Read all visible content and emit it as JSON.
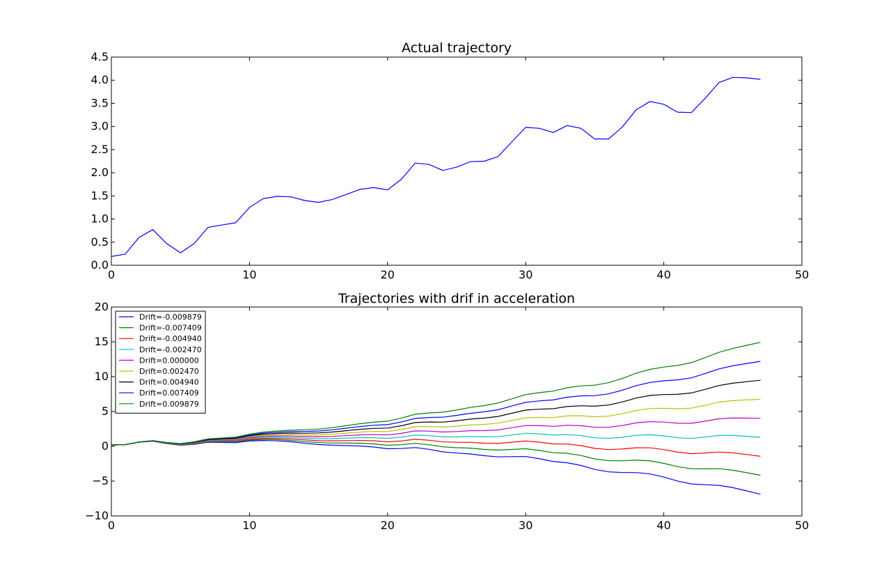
{
  "chart_data": [
    {
      "type": "line",
      "title": "Actual trajectory",
      "xlabel": "",
      "ylabel": "",
      "xlim": [
        0,
        50
      ],
      "ylim": [
        0,
        4.5
      ],
      "xticks": [
        "0",
        "10",
        "20",
        "30",
        "40",
        "50"
      ],
      "yticks": [
        "0.0",
        "0.5",
        "1.0",
        "1.5",
        "2.0",
        "2.5",
        "3.0",
        "3.5",
        "4.0",
        "4.5"
      ],
      "grid": false,
      "series": [
        {
          "color": "#0000ff",
          "x": [
            0,
            1,
            2,
            3,
            4,
            5,
            6,
            7,
            8,
            9,
            10,
            11,
            12,
            13,
            14,
            15,
            16,
            17,
            18,
            19,
            20,
            21,
            22,
            23,
            24,
            25,
            26,
            27,
            28,
            29,
            30,
            31,
            32,
            33,
            34,
            35,
            36,
            37,
            38,
            39,
            40,
            41,
            42,
            43,
            44,
            45,
            46,
            47
          ],
          "values": [
            0.19,
            0.24,
            0.6,
            0.77,
            0.47,
            0.27,
            0.47,
            0.82,
            0.87,
            0.92,
            1.25,
            1.44,
            1.49,
            1.48,
            1.4,
            1.36,
            1.42,
            1.53,
            1.64,
            1.68,
            1.63,
            1.86,
            2.21,
            2.18,
            2.05,
            2.12,
            2.24,
            2.25,
            2.35,
            2.67,
            2.98,
            2.96,
            2.87,
            3.02,
            2.96,
            2.73,
            2.73,
            2.99,
            3.36,
            3.54,
            3.48,
            3.31,
            3.3,
            3.61,
            3.95,
            4.06,
            4.05,
            4.02
          ]
        }
      ]
    },
    {
      "type": "line",
      "title": "Trajectories with drif in acceleration",
      "xlabel": "",
      "ylabel": "",
      "xlim": [
        0,
        50
      ],
      "ylim": [
        -10,
        20
      ],
      "xticks": [
        "0",
        "10",
        "20",
        "30",
        "40",
        "50"
      ],
      "yticks": [
        "−10",
        "−5",
        "0",
        "5",
        "10",
        "15",
        "20"
      ],
      "grid": false,
      "legend_position": "upper-left",
      "x": [
        0,
        1,
        2,
        3,
        4,
        5,
        6,
        7,
        8,
        9,
        10,
        11,
        12,
        13,
        14,
        15,
        16,
        17,
        18,
        19,
        20,
        21,
        22,
        23,
        24,
        25,
        26,
        27,
        28,
        29,
        30,
        31,
        32,
        33,
        34,
        35,
        36,
        37,
        38,
        39,
        40,
        41,
        42,
        43,
        44,
        45,
        46,
        47
      ],
      "base": [
        0.19,
        0.24,
        0.6,
        0.77,
        0.47,
        0.27,
        0.47,
        0.82,
        0.87,
        0.92,
        1.25,
        1.44,
        1.49,
        1.48,
        1.4,
        1.36,
        1.42,
        1.53,
        1.64,
        1.68,
        1.63,
        1.86,
        2.21,
        2.18,
        2.05,
        2.12,
        2.24,
        2.25,
        2.35,
        2.67,
        2.98,
        2.96,
        2.87,
        3.02,
        2.96,
        2.73,
        2.73,
        2.99,
        3.36,
        3.54,
        3.48,
        3.31,
        3.3,
        3.61,
        3.95,
        4.06,
        4.05,
        4.02
      ],
      "series": [
        {
          "name": "Drift=-0.009879",
          "drift": -0.009879,
          "color": "#0000ff"
        },
        {
          "name": "Drift=-0.007409",
          "drift": -0.007409,
          "color": "#008000"
        },
        {
          "name": "Drift=-0.004940",
          "drift": -0.00494,
          "color": "#ff0000"
        },
        {
          "name": "Drift=-0.002470",
          "drift": -0.00247,
          "color": "#00bfbf"
        },
        {
          "name": "Drift=0.000000",
          "drift": 0.0,
          "color": "#bf00bf"
        },
        {
          "name": "Drift=0.002470",
          "drift": 0.00247,
          "color": "#bfbf00"
        },
        {
          "name": "Drift=0.004940",
          "drift": 0.00494,
          "color": "#000000"
        },
        {
          "name": "Drift=0.007409",
          "drift": 0.007409,
          "color": "#0000ff"
        },
        {
          "name": "Drift=0.009879",
          "drift": 0.009879,
          "color": "#008000"
        }
      ]
    }
  ]
}
